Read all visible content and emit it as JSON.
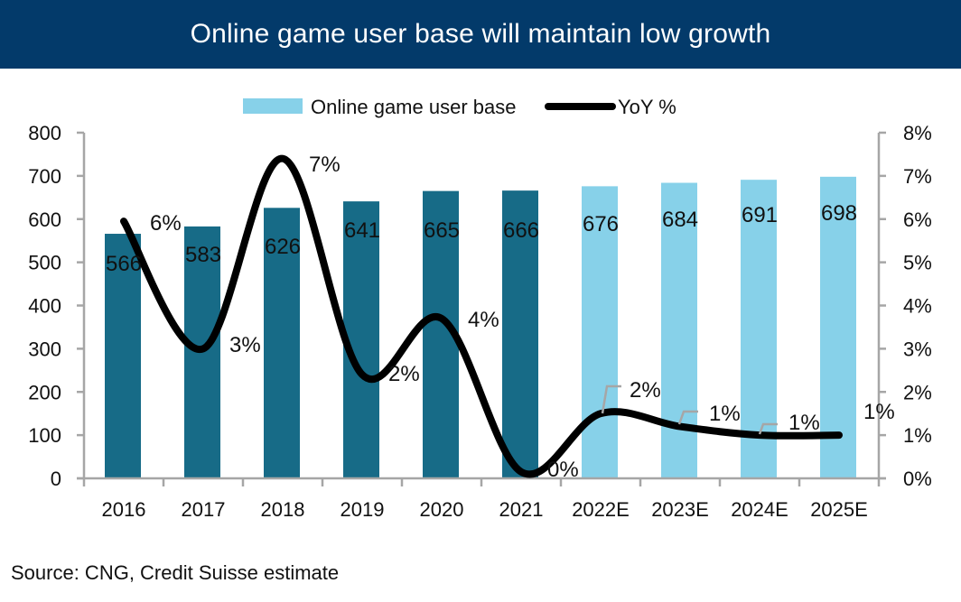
{
  "header": {
    "title": "Online game user base will maintain low growth"
  },
  "source": "Source: CNG, Credit Suisse estimate",
  "colors": {
    "header_bg": "#033a6a",
    "bar_actual": "#176b87",
    "bar_estimate": "#87d1e9",
    "line": "#000000",
    "axis": "#a6a6a6"
  },
  "chart_data": {
    "type": "bar",
    "title": "Online game user base will maintain low growth",
    "categories": [
      "2016",
      "2017",
      "2018",
      "2019",
      "2020",
      "2021",
      "2022E",
      "2023E",
      "2024E",
      "2025E"
    ],
    "series": [
      {
        "name": "Online game user base",
        "type": "bar",
        "axis": "left",
        "values": [
          566,
          583,
          626,
          641,
          665,
          666,
          676,
          684,
          691,
          698
        ],
        "labels": [
          "566",
          "583",
          "626",
          "641",
          "665",
          "666",
          "676",
          "684",
          "691",
          "698"
        ],
        "estimate_from_index": 6
      },
      {
        "name": "YoY %",
        "type": "line",
        "axis": "right",
        "smooth": true,
        "values": [
          5.95,
          3.0,
          7.4,
          2.4,
          3.7,
          0.15,
          1.5,
          1.2,
          1.0,
          1.0
        ],
        "labels": [
          "6%",
          "3%",
          "7%",
          "2%",
          "4%",
          "0%",
          "2%",
          "1%",
          "1%",
          "1%"
        ]
      }
    ],
    "left_axis": {
      "min": 0,
      "max": 800,
      "ticks": [
        "0",
        "100",
        "200",
        "300",
        "400",
        "500",
        "600",
        "700",
        "800"
      ]
    },
    "right_axis": {
      "min": 0,
      "max": 8,
      "ticks": [
        "0%",
        "1%",
        "2%",
        "3%",
        "4%",
        "5%",
        "6%",
        "7%",
        "8%"
      ]
    },
    "xlabel": "",
    "ylabel": "",
    "grid": false,
    "legend": {
      "position": "top-center",
      "items": [
        "Online game user base",
        "YoY %"
      ]
    }
  }
}
